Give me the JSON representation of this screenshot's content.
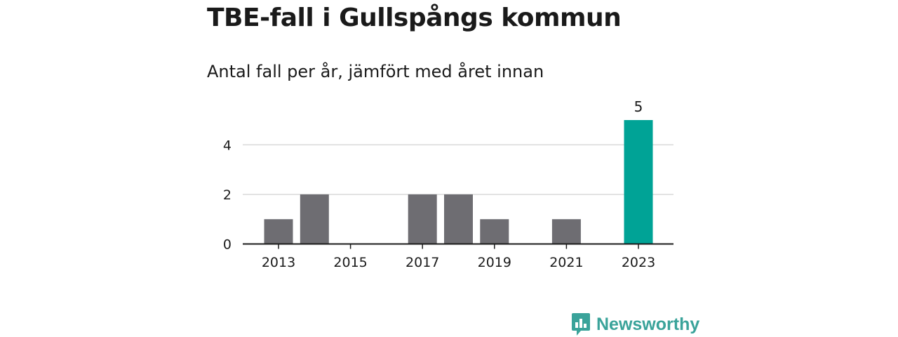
{
  "header": {
    "title": "TBE-fall i Gullspångs kommun",
    "subtitle": "Antal fall per år, jämfört med året innan"
  },
  "colors": {
    "bar": "#6e6d72",
    "highlight": "#00a396",
    "grid": "#d9d9d9",
    "axis": "#1a1a1a",
    "brand": "#3aa39a"
  },
  "chart_data": {
    "type": "bar",
    "categories": [
      2013,
      2014,
      2015,
      2016,
      2017,
      2018,
      2019,
      2020,
      2021,
      2022,
      2023
    ],
    "values": [
      1,
      2,
      0,
      0,
      2,
      2,
      1,
      0,
      1,
      0,
      5
    ],
    "highlight_category": 2023,
    "highlight_value_label": "5",
    "x_ticks": [
      "2013",
      "2015",
      "2017",
      "2019",
      "2021",
      "2023"
    ],
    "y_ticks": [
      0,
      2,
      4
    ],
    "ylim": [
      0,
      5
    ],
    "xlabel": "",
    "ylabel": "",
    "grid": true
  },
  "brand": {
    "name": "Newsworthy",
    "icon": "bar-chart-speech-bubble-icon"
  }
}
